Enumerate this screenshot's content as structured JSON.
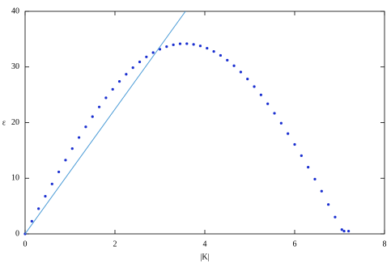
{
  "chart_data": {
    "type": "scatter",
    "x_label": "|K|",
    "y_label": "ε",
    "xlim": [
      0,
      8
    ],
    "ylim": [
      0,
      40
    ],
    "xticks": [
      0,
      2,
      4,
      6,
      8
    ],
    "yticks": [
      0,
      10,
      20,
      30,
      40
    ],
    "series": [
      {
        "type": "scatter",
        "color": "#1a2fd0",
        "x": [
          0,
          0.15,
          0.3,
          0.45,
          0.6,
          0.75,
          0.9,
          1.05,
          1.2,
          1.35,
          1.5,
          1.65,
          1.8,
          1.95,
          2.1,
          2.25,
          2.4,
          2.55,
          2.7,
          2.85,
          3.0,
          3.15,
          3.3,
          3.45,
          3.6,
          3.75,
          3.9,
          4.05,
          4.2,
          4.35,
          4.5,
          4.65,
          4.8,
          4.95,
          5.1,
          5.25,
          5.4,
          5.55,
          5.7,
          5.85,
          6.0,
          6.15,
          6.3,
          6.45,
          6.6,
          6.75,
          6.9,
          7.05,
          7.1,
          7.2
        ],
        "values": [
          0,
          2.27,
          4.53,
          6.76,
          8.97,
          11.14,
          13.26,
          15.33,
          17.32,
          19.24,
          21.07,
          22.81,
          24.45,
          25.99,
          27.4,
          28.69,
          29.87,
          30.91,
          31.81,
          32.58,
          33.19,
          33.66,
          33.99,
          34.17,
          34.19,
          34.06,
          33.79,
          33.37,
          32.79,
          32.08,
          31.22,
          30.22,
          29.09,
          27.84,
          26.47,
          24.98,
          23.38,
          21.68,
          19.89,
          18.02,
          16.07,
          14.05,
          11.98,
          9.84,
          7.68,
          5.28,
          3.02,
          0.76,
          0.5,
          0.5
        ]
      },
      {
        "type": "line",
        "color": "#4a9bd6",
        "x": [
          0,
          3.57
        ],
        "values": [
          0,
          40
        ]
      }
    ]
  }
}
